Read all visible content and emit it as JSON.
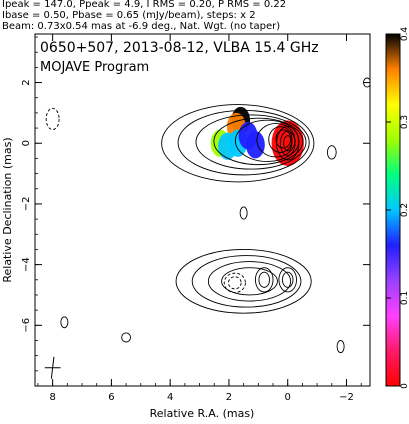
{
  "header": {
    "line1": "Ipeak = 147.0, Ppeak = 4.9, I RMS = 0.20, P RMS = 0.22",
    "line2": "Ibase = 0.50, Pbase = 0.65 (mJy/beam), steps: x 2",
    "line3": "Beam: 0.73x0.54 mas at -6.9 deg., Nat. Wgt. (no taper)"
  },
  "chart_data": {
    "type": "heatmap",
    "title": "0650+507, 2013-08-12, VLBA 15.4 GHz",
    "subtitle": "MOJAVE Program",
    "xlabel": "Relative R.A. (mas)",
    "ylabel": "Relative Declination (mas)",
    "xlim": [
      8.6,
      -2.8
    ],
    "ylim": [
      -8.0,
      3.6
    ],
    "xticks": [
      8,
      6,
      4,
      2,
      0,
      -2
    ],
    "xtick_labels": [
      "8",
      "6",
      "4",
      "2",
      "0",
      "−2"
    ],
    "yticks": [
      2,
      0,
      -2,
      -4,
      -6
    ],
    "ytick_labels": [
      "2",
      "0",
      "−2",
      "−4",
      "−6"
    ],
    "colorbar": {
      "range": [
        0,
        0.4
      ],
      "ticks": [
        0,
        0.1,
        0.2,
        0.3,
        0.4
      ],
      "tick_labels": [
        "0",
        "0.1",
        "0.2",
        "0.3",
        "0.4"
      ],
      "colors": [
        "#ff0000",
        "#ff1a6a",
        "#ff40ff",
        "#9a40ff",
        "#2020ff",
        "#00c8ff",
        "#00ff80",
        "#a0ff00",
        "#ffff00",
        "#ff8000",
        "#000000"
      ]
    },
    "features": {
      "core": {
        "x": 0.0,
        "y": 0.0
      },
      "jet_component": {
        "x": 1.3,
        "y": -4.4
      },
      "fractional_pol_peak": {
        "x": 1.6,
        "y": 0.7
      },
      "beam": {
        "major": 0.73,
        "minor": 0.54,
        "pa_deg": -6.9,
        "center": [
          8.0,
          -7.4
        ]
      },
      "pol_contour_level_mJy": 0.65,
      "total_intensity_base_mJy": 0.5,
      "contour_step_factor": 2
    },
    "contours_mJy": [
      0.5,
      1,
      2,
      4,
      8,
      16,
      32,
      64,
      128
    ],
    "polarization_patches": [
      {
        "x": 1.6,
        "y": 0.75,
        "value": 0.4
      },
      {
        "x": 1.75,
        "y": 0.55,
        "value": 0.36
      },
      {
        "x": 2.3,
        "y": 0.0,
        "value": 0.26
      },
      {
        "x": 2.05,
        "y": -0.1,
        "value": 0.22
      },
      {
        "x": 1.7,
        "y": 0.0,
        "value": 0.19
      },
      {
        "x": 1.35,
        "y": 0.25,
        "value": 0.14
      },
      {
        "x": 1.1,
        "y": -0.05,
        "value": 0.16
      },
      {
        "x": 0.0,
        "y": 0.0,
        "value": 0.02
      }
    ]
  }
}
